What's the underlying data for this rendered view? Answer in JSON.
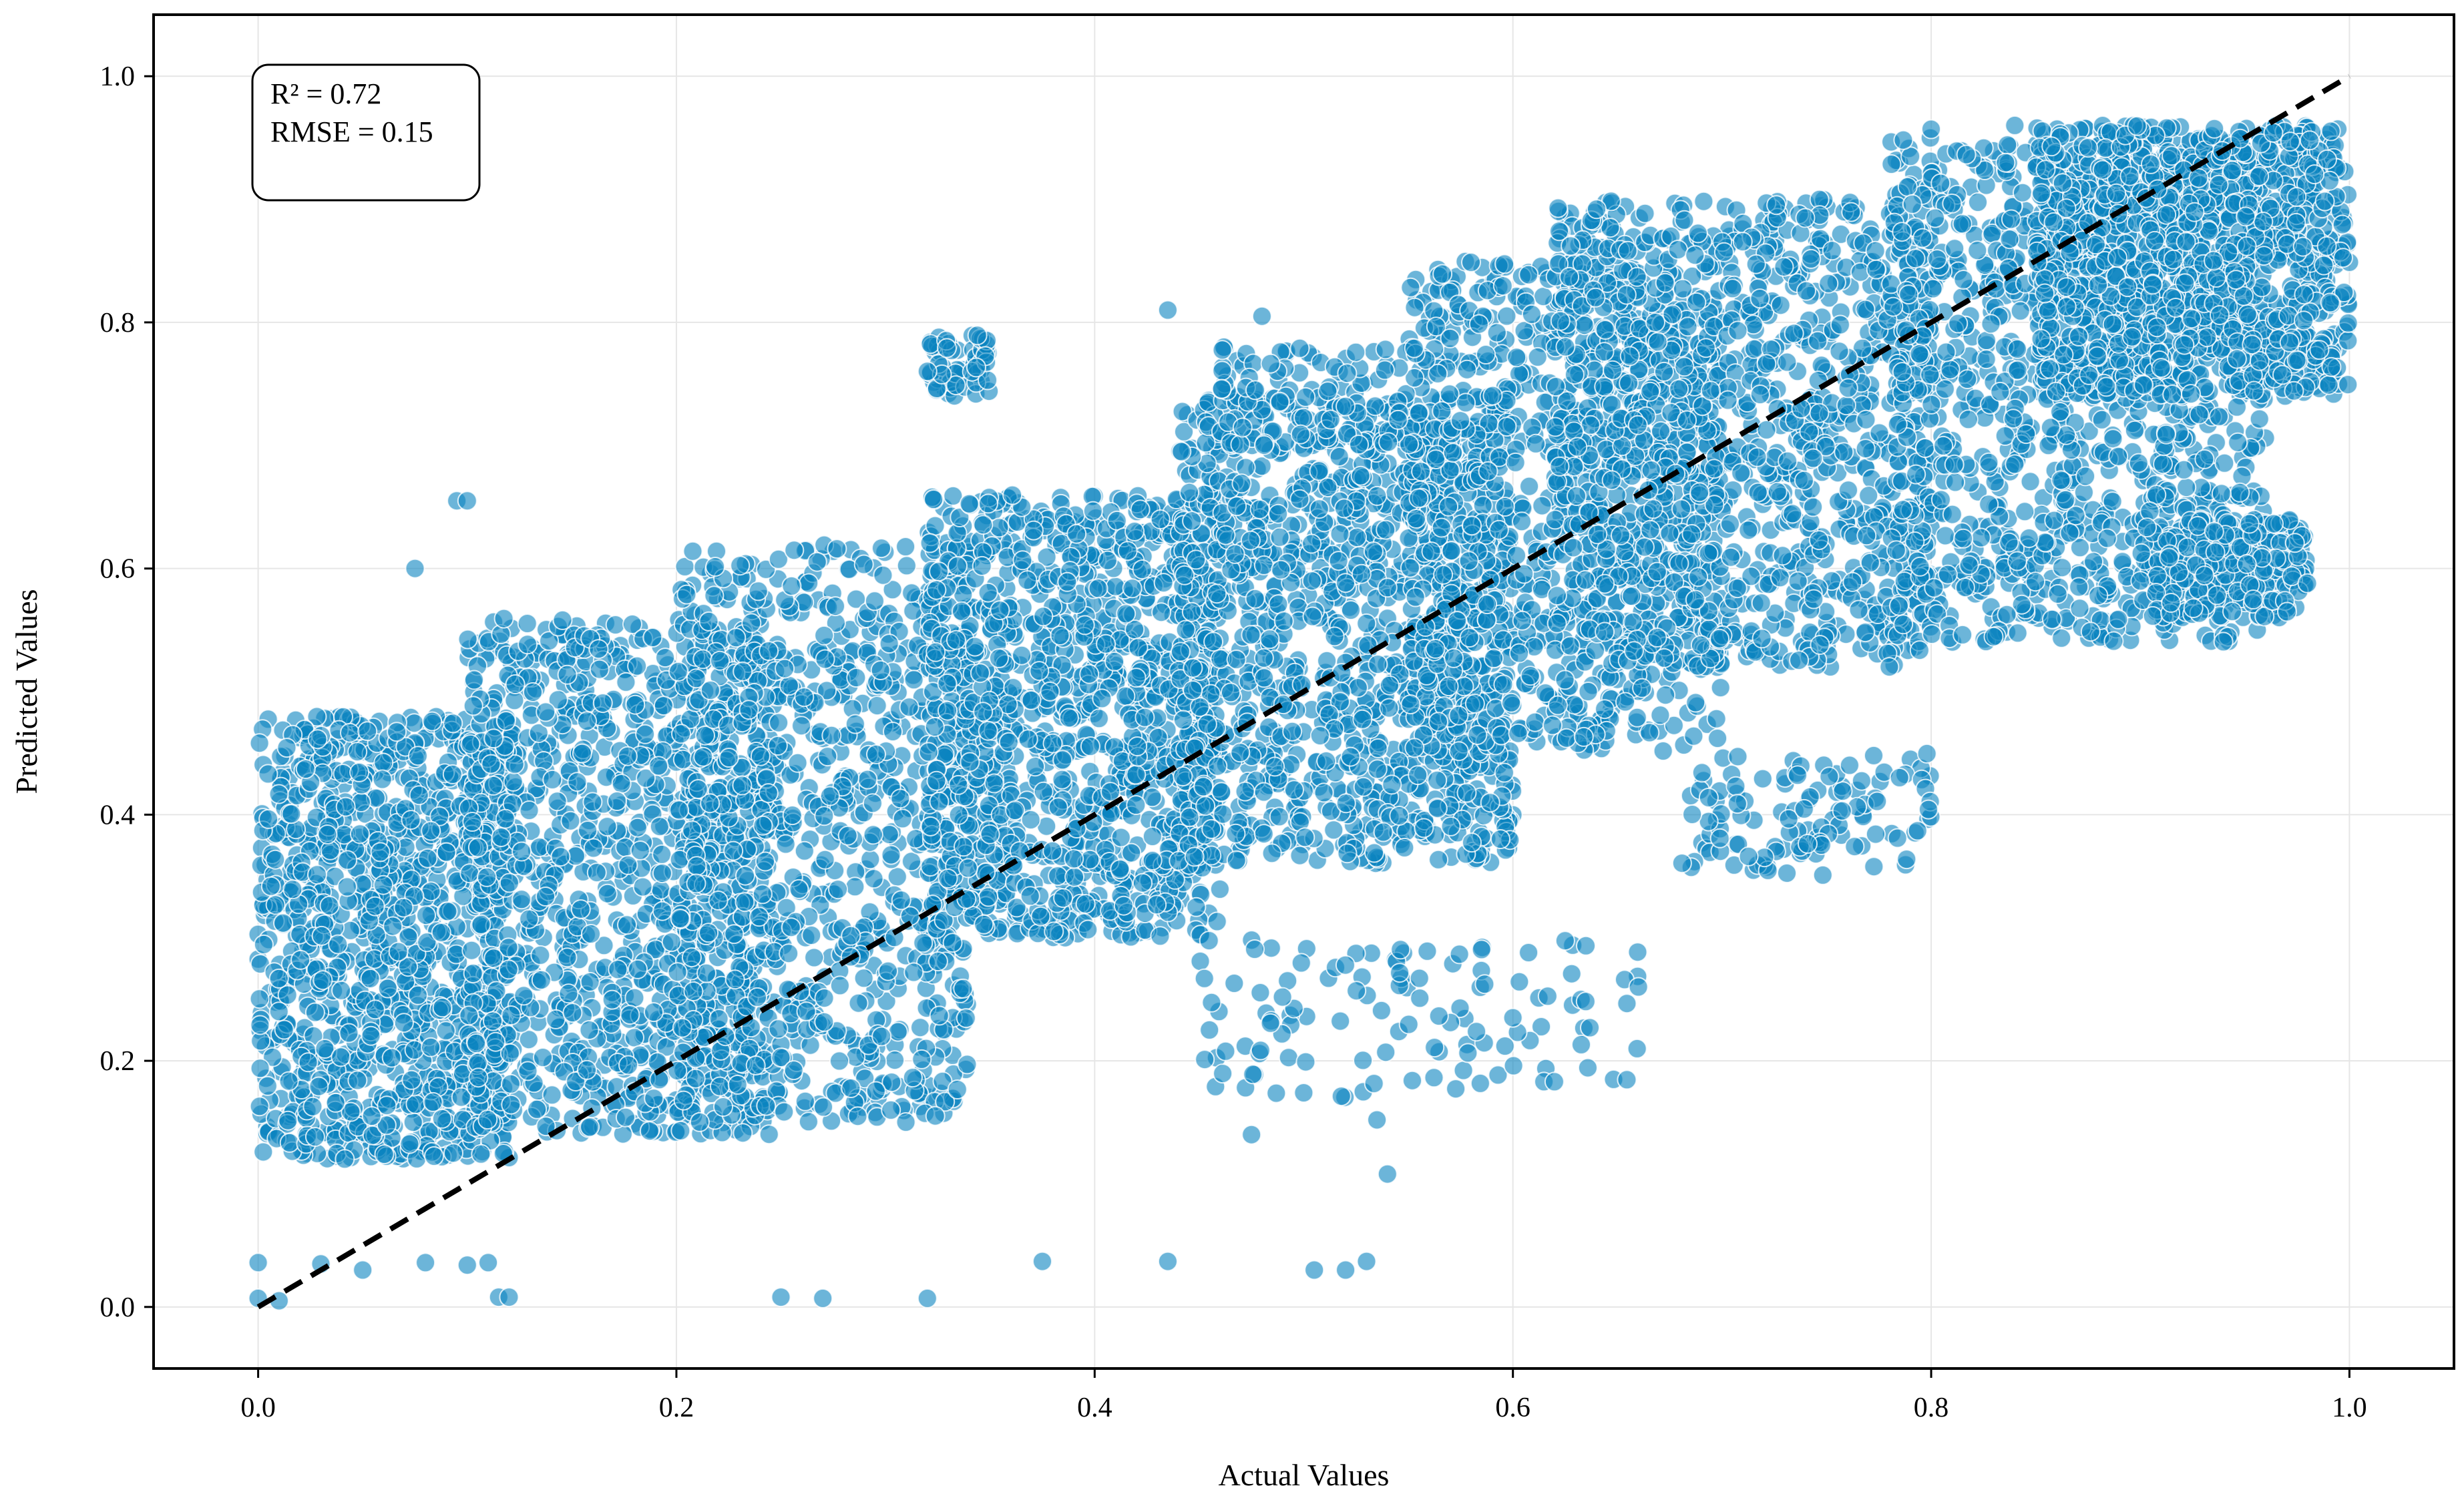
{
  "chart_data": {
    "type": "scatter",
    "title": "",
    "xlabel": "Actual Values",
    "ylabel": "Predicted Values",
    "xlim": [
      -0.05,
      1.05
    ],
    "ylim": [
      -0.05,
      1.05
    ],
    "xticks": [
      "0.0",
      "0.2",
      "0.4",
      "0.6",
      "0.8",
      "1.0"
    ],
    "yticks": [
      "0.0",
      "0.2",
      "0.4",
      "0.6",
      "0.8",
      "1.0"
    ],
    "grid": true,
    "point_color": "#0a84c0",
    "line_color": "#000000",
    "reference_line": {
      "style": "dashed",
      "x": [
        0.0,
        1.0
      ],
      "y": [
        0.0,
        1.0
      ]
    },
    "annotation": {
      "r2": "R² = 0.72",
      "rmse": "RMSE = 0.15"
    },
    "series": [
      {
        "clusters": [
          {
            "x": [
              0.0,
              0.12
            ],
            "y": [
              0.12,
              0.48
            ],
            "n": 1100
          },
          {
            "x": [
              0.1,
              0.25
            ],
            "y": [
              0.14,
              0.56
            ],
            "n": 1100
          },
          {
            "x": [
              0.2,
              0.34
            ],
            "y": [
              0.15,
              0.62
            ],
            "n": 900
          },
          {
            "x": [
              0.32,
              0.46
            ],
            "y": [
              0.3,
              0.66
            ],
            "n": 1200
          },
          {
            "x": [
              0.44,
              0.6
            ],
            "y": [
              0.36,
              0.74
            ],
            "n": 1200
          },
          {
            "x": [
              0.55,
              0.7
            ],
            "y": [
              0.45,
              0.85
            ],
            "n": 900
          },
          {
            "x": [
              0.62,
              0.8
            ],
            "y": [
              0.52,
              0.9
            ],
            "n": 1100
          },
          {
            "x": [
              0.78,
              0.96
            ],
            "y": [
              0.54,
              0.95
            ],
            "n": 1100
          },
          {
            "x": [
              0.85,
              1.0
            ],
            "y": [
              0.74,
              0.96
            ],
            "n": 1200
          },
          {
            "x": [
              0.9,
              0.98
            ],
            "y": [
              0.56,
              0.64
            ],
            "n": 250
          },
          {
            "x": [
              0.68,
              0.8
            ],
            "y": [
              0.35,
              0.45
            ],
            "n": 120
          },
          {
            "x": [
              0.45,
              0.66
            ],
            "y": [
              0.17,
              0.3
            ],
            "n": 120
          },
          {
            "x": [
              0.32,
              0.35
            ],
            "y": [
              0.74,
              0.79
            ],
            "n": 60
          },
          {
            "x": [
              0.46,
              0.56
            ],
            "y": [
              0.7,
              0.78
            ],
            "n": 120
          }
        ],
        "outliers": [
          [
            0.0,
            0.036
          ],
          [
            0.0,
            0.007
          ],
          [
            0.01,
            0.005
          ],
          [
            0.03,
            0.035
          ],
          [
            0.05,
            0.03
          ],
          [
            0.08,
            0.036
          ],
          [
            0.1,
            0.034
          ],
          [
            0.11,
            0.036
          ],
          [
            0.115,
            0.008
          ],
          [
            0.12,
            0.008
          ],
          [
            0.25,
            0.008
          ],
          [
            0.27,
            0.007
          ],
          [
            0.32,
            0.007
          ],
          [
            0.375,
            0.037
          ],
          [
            0.435,
            0.037
          ],
          [
            0.505,
            0.03
          ],
          [
            0.52,
            0.03
          ],
          [
            0.53,
            0.037
          ],
          [
            0.095,
            0.655
          ],
          [
            0.1,
            0.655
          ],
          [
            0.075,
            0.6
          ],
          [
            0.435,
            0.81
          ],
          [
            0.48,
            0.805
          ],
          [
            0.64,
            0.892
          ],
          [
            0.8,
            0.957
          ],
          [
            0.84,
            0.96
          ],
          [
            0.78,
            0.52
          ],
          [
            0.54,
            0.108
          ],
          [
            0.535,
            0.152
          ],
          [
            0.475,
            0.14
          ],
          [
            0.66,
            0.26
          ],
          [
            0.6,
            0.235
          ]
        ]
      }
    ]
  }
}
